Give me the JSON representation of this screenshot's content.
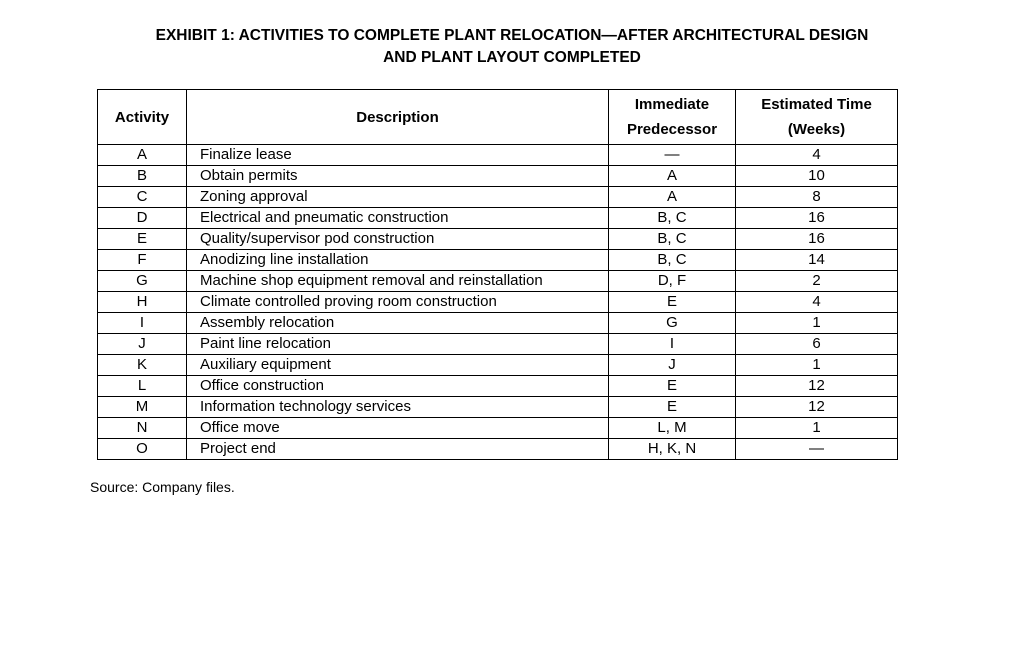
{
  "title": {
    "line1": "EXHIBIT 1: ACTIVITIES TO COMPLETE PLANT RELOCATION—AFTER ARCHITECTURAL DESIGN",
    "line2": "AND PLANT LAYOUT COMPLETED"
  },
  "table": {
    "headers": [
      "Activity",
      "Description",
      "Immediate Predecessor",
      "Estimated Time (Weeks)"
    ],
    "rows": [
      {
        "activity": "A",
        "description": "Finalize lease",
        "predecessor": "—",
        "time": "4"
      },
      {
        "activity": "B",
        "description": "Obtain permits",
        "predecessor": "A",
        "time": "10"
      },
      {
        "activity": "C",
        "description": "Zoning approval",
        "predecessor": "A",
        "time": "8"
      },
      {
        "activity": "D",
        "description": "Electrical and pneumatic construction",
        "predecessor": "B, C",
        "time": "16"
      },
      {
        "activity": "E",
        "description": "Quality/supervisor pod construction",
        "predecessor": "B, C",
        "time": "16"
      },
      {
        "activity": "F",
        "description": "Anodizing line installation",
        "predecessor": "B, C",
        "time": "14"
      },
      {
        "activity": "G",
        "description": "Machine shop equipment removal and reinstallation",
        "predecessor": "D, F",
        "time": "2"
      },
      {
        "activity": "H",
        "description": "Climate controlled proving room construction",
        "predecessor": "E",
        "time": "4"
      },
      {
        "activity": "I",
        "description": "Assembly relocation",
        "predecessor": "G",
        "time": "1"
      },
      {
        "activity": "J",
        "description": "Paint line relocation",
        "predecessor": "I",
        "time": "6"
      },
      {
        "activity": "K",
        "description": "Auxiliary equipment",
        "predecessor": "J",
        "time": "1"
      },
      {
        "activity": "L",
        "description": "Office construction",
        "predecessor": "E",
        "time": "12"
      },
      {
        "activity": "M",
        "description": "Information technology services",
        "predecessor": "E",
        "time": "12"
      },
      {
        "activity": "N",
        "description": "Office move",
        "predecessor": "L, M",
        "time": "1"
      },
      {
        "activity": "O",
        "description": "Project end",
        "predecessor": "H, K, N",
        "time": "—"
      }
    ]
  },
  "source": "Source: Company files."
}
